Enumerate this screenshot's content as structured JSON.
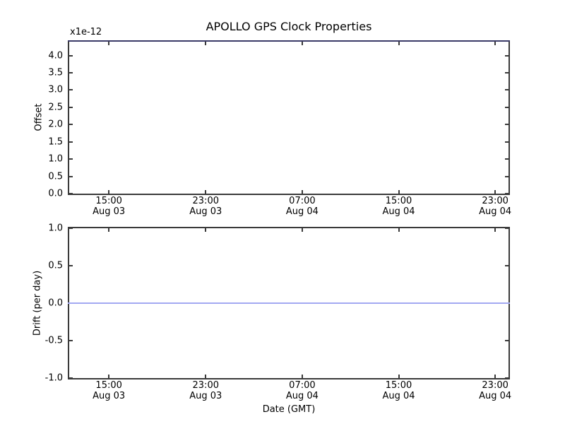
{
  "figure": {
    "title": "APOLLO GPS Clock Properties",
    "offset_multiplier": "x1e-12",
    "xlabel": "Date (GMT)",
    "background_color": "#ffffff",
    "spine_color": "#3a3a3a",
    "tick_color": "#3a3a3a",
    "text_color": "#000000"
  },
  "chart_data": [
    {
      "id": "offset-plot",
      "type": "line",
      "title": "APOLLO GPS Clock Properties",
      "ylabel": "Offset",
      "y_unit_multiplier": "x1e-12",
      "ylim": [
        0.0,
        4.4
      ],
      "yticks": [
        0.0,
        0.5,
        1.0,
        1.5,
        2.0,
        2.5,
        3.0,
        3.5,
        4.0
      ],
      "grid": false,
      "legend_position": "none",
      "x_ticks": [
        {
          "time": "15:00",
          "date": "Aug 03",
          "frac": 0.0903
        },
        {
          "time": "23:00",
          "date": "Aug 03",
          "frac": 0.3107
        },
        {
          "time": "07:00",
          "date": "Aug 04",
          "frac": 0.5304
        },
        {
          "time": "15:00",
          "date": "Aug 04",
          "frac": 0.75
        },
        {
          "time": "23:00",
          "date": "Aug 04",
          "frac": 0.9697
        }
      ],
      "series": [
        {
          "name": "gps-clock-offset-line",
          "color": "#3a3a68",
          "value_constant": 4.4,
          "note": "flat offset trace rendered along the top axis edge (~4.4e-12), blended with top spine"
        }
      ]
    },
    {
      "id": "drift-plot",
      "type": "line",
      "ylabel": "Drift (per day)",
      "xlabel": "Date (GMT)",
      "ylim": [
        -1.0,
        1.0
      ],
      "yticks": [
        1.0,
        0.5,
        0.0,
        -0.5,
        -1.0
      ],
      "grid": false,
      "legend_position": "none",
      "x_ticks": [
        {
          "time": "15:00",
          "date": "Aug 03",
          "frac": 0.0903
        },
        {
          "time": "23:00",
          "date": "Aug 03",
          "frac": 0.3107
        },
        {
          "time": "07:00",
          "date": "Aug 04",
          "frac": 0.5304
        },
        {
          "time": "15:00",
          "date": "Aug 04",
          "frac": 0.75
        },
        {
          "time": "23:00",
          "date": "Aug 04",
          "frac": 0.9697
        }
      ],
      "series": [
        {
          "name": "gps-clock-drift-line",
          "color": "#a3a9f2",
          "value_constant": 0.0,
          "note": "flat horizontal drift line at 0.0 spanning the full x range"
        }
      ]
    }
  ]
}
